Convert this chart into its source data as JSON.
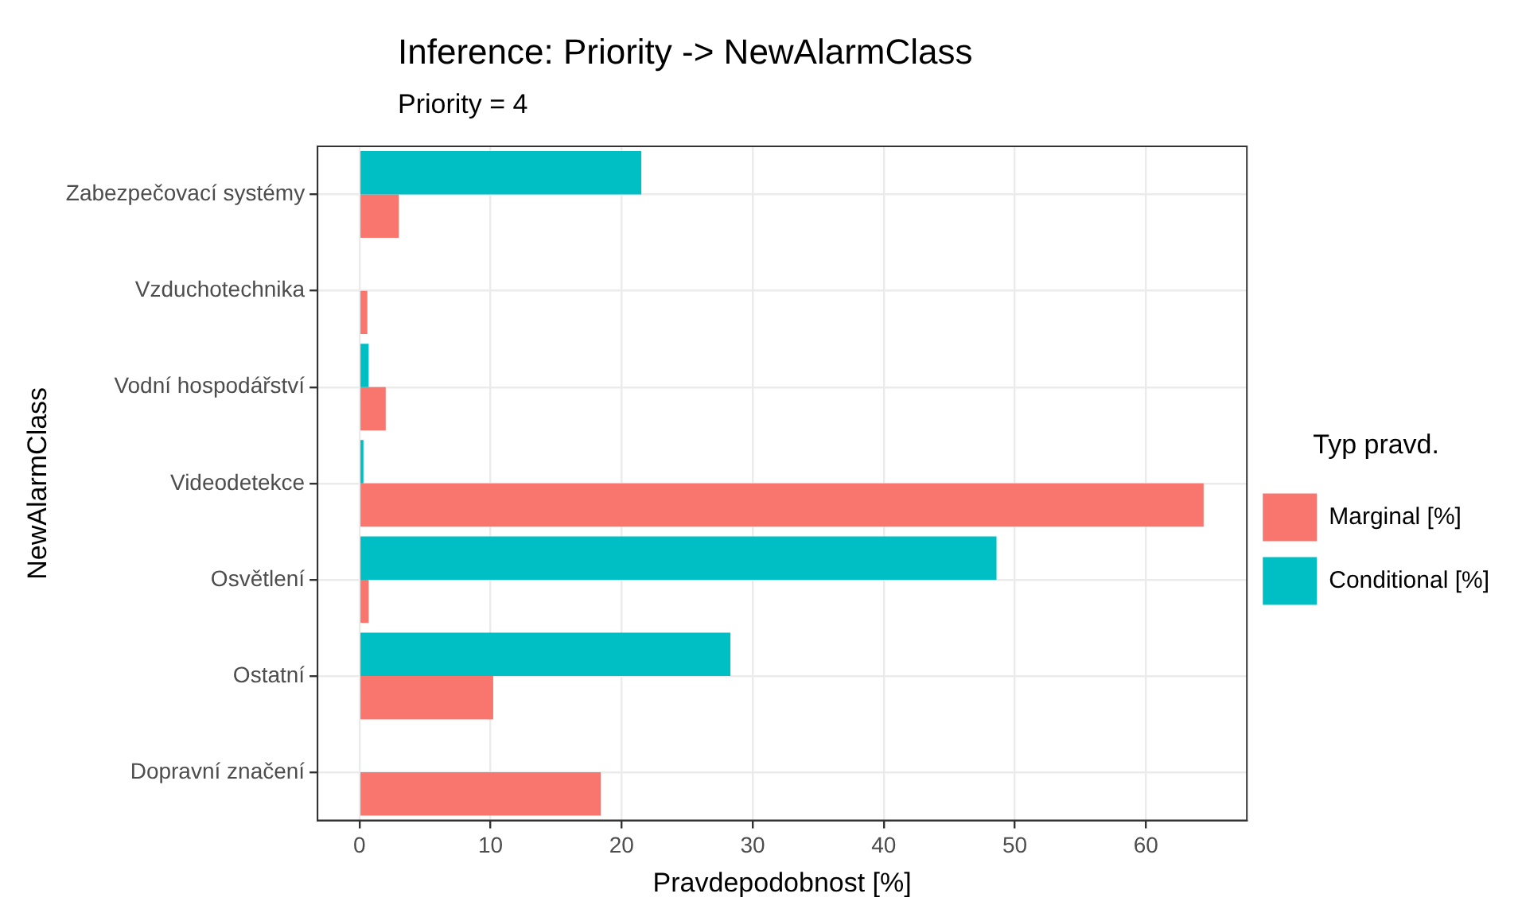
{
  "chart_data": {
    "type": "bar",
    "orientation": "horizontal",
    "title": "Inference: Priority -> NewAlarmClass",
    "subtitle": "Priority = 4",
    "xlabel": "Pravdepodobnost [%]",
    "ylabel": "NewAlarmClass",
    "legend_title": "Typ pravd.",
    "categories": [
      "Zabezpečovací systémy",
      "Vzduchotechnika",
      "Vodní hospodářství",
      "Videodetekce",
      "Osvětlení",
      "Ostatní",
      "Dopravní značení"
    ],
    "series": [
      {
        "name": "Marginal [%]",
        "color": "#f8766d",
        "values": [
          3.0,
          0.6,
          2.0,
          64.4,
          0.7,
          10.2,
          18.4
        ]
      },
      {
        "name": "Conditional [%]",
        "color": "#00bfc4",
        "values": [
          21.5,
          0,
          0.7,
          0.3,
          48.6,
          28.3,
          0
        ]
      }
    ],
    "xlim": [
      -3.2,
      67.7
    ],
    "xticks": [
      0,
      10,
      20,
      30,
      40,
      50,
      60
    ],
    "grid": true,
    "legend": "right"
  }
}
